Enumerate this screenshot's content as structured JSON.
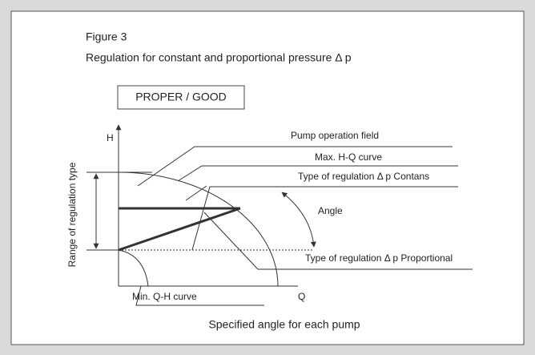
{
  "figure": {
    "label": "Figure 3",
    "caption": "Regulation for constant and proportional pressure Δ p",
    "badge": "PROPER / GOOD",
    "axis_h": "H",
    "axis_q": "Q",
    "range_label": "Range of regulation type",
    "bottom_caption": "Specified angle for each pump",
    "callouts": [
      "Pump operation field",
      "Max. H-Q curve",
      "Type of regulation Δ p Contans",
      "Angle",
      "Type of regulation Δ p Proportional",
      "Min. Q-H curve"
    ]
  }
}
